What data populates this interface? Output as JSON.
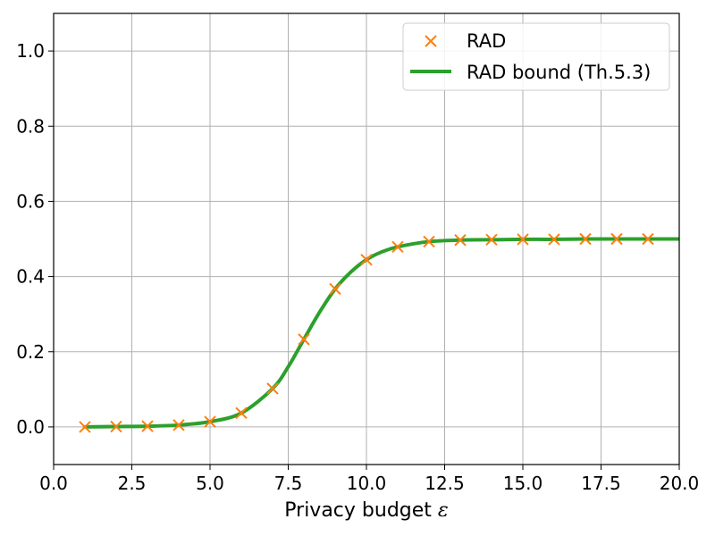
{
  "chart_data": {
    "type": "line",
    "xlabel": "Privacy budget",
    "xlabel_symbol": "ε",
    "xlim": [
      0,
      20
    ],
    "ylim": [
      -0.1,
      1.1
    ],
    "x_ticks": [
      0.0,
      2.5,
      5.0,
      7.5,
      10.0,
      12.5,
      15.0,
      17.5,
      20.0
    ],
    "x_tick_labels": [
      "0.0",
      "2.5",
      "5.0",
      "7.5",
      "10.0",
      "12.5",
      "15.0",
      "17.5",
      "20.0"
    ],
    "y_ticks": [
      0.0,
      0.2,
      0.4,
      0.6,
      0.8,
      1.0
    ],
    "y_tick_labels": [
      "0.0",
      "0.2",
      "0.4",
      "0.6",
      "0.8",
      "1.0"
    ],
    "grid": true,
    "legend_position": "top-right",
    "series": [
      {
        "name": "RAD",
        "type": "scatter",
        "marker": "x",
        "color": "#ff7f0e",
        "x": [
          1,
          2,
          3,
          4,
          5,
          6,
          7,
          8,
          9,
          10,
          11,
          12,
          13,
          14,
          15,
          16,
          17,
          18,
          19
        ],
        "y": [
          0.0,
          0.001,
          0.002,
          0.005,
          0.014,
          0.037,
          0.102,
          0.233,
          0.367,
          0.445,
          0.479,
          0.493,
          0.497,
          0.498,
          0.499,
          0.499,
          0.5,
          0.5,
          0.5
        ]
      },
      {
        "name": "RAD bound (Th.5.3)",
        "type": "line",
        "color": "#2ca02c",
        "x": [
          1,
          2,
          3,
          4,
          5,
          6,
          7,
          7.5,
          8,
          8.5,
          9,
          9.5,
          10,
          10.5,
          11,
          12,
          13,
          14,
          15,
          16,
          17,
          18,
          19,
          20
        ],
        "y": [
          0.0,
          0.001,
          0.002,
          0.005,
          0.014,
          0.037,
          0.102,
          0.16,
          0.233,
          0.305,
          0.367,
          0.412,
          0.445,
          0.466,
          0.479,
          0.493,
          0.497,
          0.498,
          0.499,
          0.499,
          0.5,
          0.5,
          0.5,
          0.5
        ]
      }
    ]
  }
}
